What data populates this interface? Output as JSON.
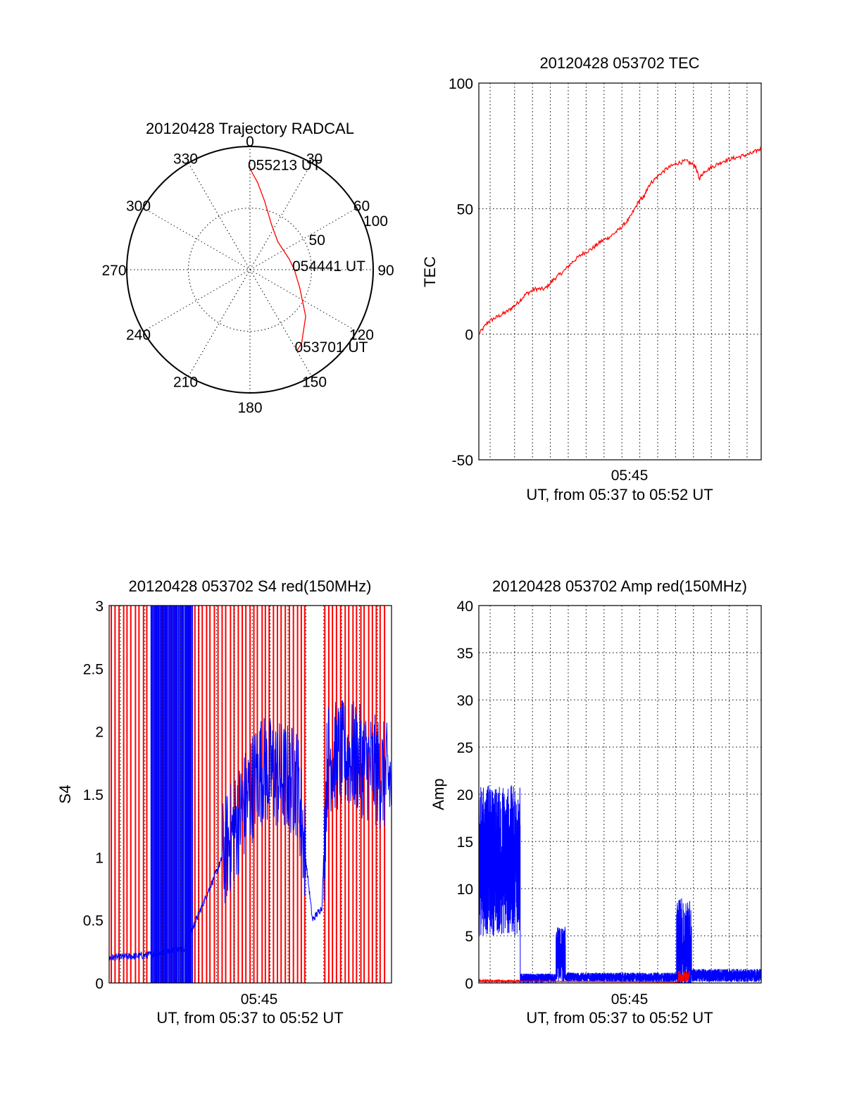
{
  "colors": {
    "red": "#ff0000",
    "blue": "#0000ff",
    "axis": "#000000",
    "background": "#ffffff"
  },
  "chart_data": [
    {
      "type": "polar",
      "title": "20120428 Trajectory RADCAL",
      "azimuth_labels": [
        "0",
        "30",
        "60",
        "90",
        "120",
        "150",
        "180",
        "210",
        "240",
        "270",
        "300",
        "330"
      ],
      "radial_labels": [
        "50",
        "100"
      ],
      "grid": "dotted",
      "trajectory": {
        "color": "red",
        "points": [
          {
            "az": 0,
            "r": 82
          },
          {
            "az": 5,
            "r": 71
          },
          {
            "az": 12,
            "r": 57
          },
          {
            "az": 25,
            "r": 41
          },
          {
            "az": 45,
            "r": 32
          },
          {
            "az": 75,
            "r": 33
          },
          {
            "az": 90,
            "r": 36
          },
          {
            "az": 110,
            "r": 43
          },
          {
            "az": 130,
            "r": 59
          },
          {
            "az": 145,
            "r": 73
          },
          {
            "az": 150,
            "r": 76
          }
        ]
      },
      "annotations": [
        {
          "text": "055213 UT",
          "az": 0,
          "r": 82
        },
        {
          "text": "054441 UT",
          "az": 90,
          "r": 36
        },
        {
          "text": "053701 UT",
          "az": 150,
          "r": 76
        }
      ]
    },
    {
      "type": "line",
      "title": "20120428 053702 TEC",
      "ylabel": "TEC",
      "xlabel": "UT, from 05:37 to 05:52 UT",
      "xtick_labels": [
        "05:45"
      ],
      "ylim": [
        -50,
        100
      ],
      "ytick_labels": [
        "-50",
        "0",
        "50",
        "100"
      ],
      "grid": true,
      "series": [
        {
          "color": "red",
          "x_minutes": [
            0,
            0.5,
            1,
            1.5,
            2,
            2.5,
            3,
            3.5,
            4,
            4.5,
            5,
            5.5,
            6,
            6.5,
            7,
            7.5,
            8,
            8.5,
            8.8,
            9,
            9.5,
            10,
            10.5,
            11,
            11.5,
            11.7,
            12,
            12.5,
            13,
            13.5,
            14,
            14.5,
            15
          ],
          "values": [
            0,
            5,
            7,
            9,
            12,
            16,
            18,
            18,
            22,
            25,
            29,
            32,
            34,
            37,
            39,
            42,
            46,
            53,
            55,
            59,
            63,
            66,
            68,
            69,
            67,
            62,
            65,
            67,
            69,
            70,
            71,
            72,
            74
          ]
        }
      ]
    },
    {
      "type": "line",
      "title": "20120428 053702 S4 red(150MHz)",
      "ylabel": "S4",
      "xlabel": "UT, from 05:37 to 05:52 UT",
      "xtick_labels": [
        "05:45"
      ],
      "ylim": [
        0,
        3
      ],
      "ytick_labels": [
        "0",
        "0.5",
        "1",
        "1.5",
        "2",
        "2.5",
        "3"
      ],
      "grid": true,
      "series": [
        {
          "name": "",
          "color": "red",
          "pattern": "dense spikes 0 to 3 across the interval"
        },
        {
          "name": "",
          "color": "blue",
          "values_summary": [
            {
              "x_minutes": 0,
              "y": 0.2
            },
            {
              "x_minutes": 2,
              "y": 0.22
            },
            {
              "x_minutes": 4,
              "y": 0.28
            },
            {
              "x_minutes": 8,
              "y": 1.7
            },
            {
              "x_minutes": 10,
              "y": 1.6
            },
            {
              "x_minutes": 10.8,
              "y": 0.5
            },
            {
              "x_minutes": 11.3,
              "y": 0.6
            },
            {
              "x_minutes": 11.6,
              "y": 1.8
            },
            {
              "x_minutes": 13,
              "y": 1.8
            },
            {
              "x_minutes": 15,
              "y": 1.6
            }
          ]
        }
      ]
    },
    {
      "type": "line",
      "title": "20120428 053702 Amp red(150MHz)",
      "ylabel": "Amp",
      "xlabel": "UT, from 05:37 to 05:52 UT",
      "xtick_labels": [
        "05:45"
      ],
      "ylim": [
        0,
        40
      ],
      "ytick_labels": [
        "0",
        "5",
        "10",
        "15",
        "20",
        "25",
        "30",
        "35",
        "40"
      ],
      "grid": true,
      "series": [
        {
          "name": "",
          "color": "blue",
          "segments": [
            {
              "x_from": 0,
              "x_to": 2.2,
              "level": 13,
              "noise": 8
            },
            {
              "x_from": 2.2,
              "x_to": 4.1,
              "level": 0.5,
              "noise": 0.5
            },
            {
              "x_from": 4.1,
              "x_to": 4.6,
              "level": 3,
              "noise": 3
            },
            {
              "x_from": 4.6,
              "x_to": 10.5,
              "level": 0.6,
              "noise": 0.5
            },
            {
              "x_from": 10.5,
              "x_to": 11.3,
              "level": 4,
              "noise": 5
            },
            {
              "x_from": 11.3,
              "x_to": 15,
              "level": 0.8,
              "noise": 0.7
            }
          ]
        },
        {
          "name": "",
          "color": "red",
          "segments": [
            {
              "x_from": 0,
              "x_to": 2.2,
              "level": 0.2,
              "noise": 0.1
            },
            {
              "x_from": 10.6,
              "x_to": 11.2,
              "level": 0.7,
              "noise": 0.6
            }
          ]
        }
      ]
    }
  ]
}
